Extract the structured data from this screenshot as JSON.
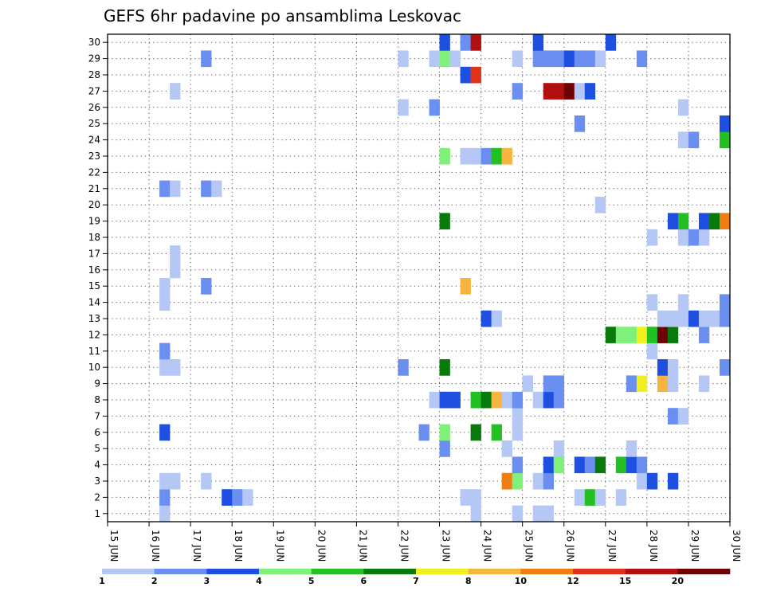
{
  "chart_data": {
    "type": "heatmap",
    "title": "GEFS 6hr padavine po ansamblima Leskovac",
    "x_ticks": [
      "15 JUN",
      "16 JUN",
      "17 JUN",
      "18 JUN",
      "19 JUN",
      "20 JUN",
      "21 JUN",
      "22 JUN",
      "23 JUN",
      "24 JUN",
      "25 JUN",
      "26 JUN",
      "27 JUN",
      "28 JUN",
      "29 JUN",
      "30 JUN"
    ],
    "y_ticks": [
      "1",
      "2",
      "3",
      "4",
      "5",
      "6",
      "7",
      "8",
      "9",
      "10",
      "11",
      "12",
      "13",
      "14",
      "15",
      "16",
      "17",
      "18",
      "19",
      "20",
      "21",
      "22",
      "23",
      "24",
      "25",
      "26",
      "27",
      "28",
      "29",
      "30"
    ],
    "xlim": [
      0,
      60
    ],
    "ylim": [
      0.5,
      30.5
    ],
    "grid": true,
    "colorbar": {
      "levels": [
        "1",
        "2",
        "3",
        "4",
        "5",
        "6",
        "7",
        "8",
        "10",
        "12",
        "15",
        "20"
      ],
      "colors": [
        "#b4c7f5",
        "#6a8ff0",
        "#1f4fe0",
        "#7ff07a",
        "#22c020",
        "#087a0c",
        "#f0f020",
        "#f8b440",
        "#f07c14",
        "#e03218",
        "#b01010",
        "#6e0202"
      ]
    },
    "cells": [
      [
        5.5,
        1,
        0
      ],
      [
        35.5,
        1,
        0
      ],
      [
        39.5,
        1,
        0
      ],
      [
        41.5,
        1,
        0
      ],
      [
        42.5,
        1,
        0
      ],
      [
        5.5,
        2,
        1
      ],
      [
        11.5,
        2,
        2
      ],
      [
        12.5,
        2,
        1
      ],
      [
        13.5,
        2,
        0
      ],
      [
        34.5,
        2,
        0
      ],
      [
        35.5,
        2,
        0
      ],
      [
        45.5,
        2,
        0
      ],
      [
        46.5,
        2,
        4
      ],
      [
        47.5,
        2,
        0
      ],
      [
        49.5,
        2,
        0
      ],
      [
        5.5,
        3,
        0
      ],
      [
        6.5,
        3,
        0
      ],
      [
        9.5,
        3,
        0
      ],
      [
        38.5,
        3,
        8
      ],
      [
        39.5,
        3,
        3
      ],
      [
        41.5,
        3,
        0
      ],
      [
        42.5,
        3,
        1
      ],
      [
        51.5,
        3,
        0
      ],
      [
        52.5,
        3,
        2
      ],
      [
        54.5,
        3,
        2
      ],
      [
        39.5,
        4,
        1
      ],
      [
        42.5,
        4,
        2
      ],
      [
        43.5,
        4,
        3
      ],
      [
        45.5,
        4,
        2
      ],
      [
        46.5,
        4,
        1
      ],
      [
        47.5,
        4,
        5
      ],
      [
        49.5,
        4,
        4
      ],
      [
        50.5,
        4,
        2
      ],
      [
        51.5,
        4,
        1
      ],
      [
        32.5,
        5,
        1
      ],
      [
        38.5,
        5,
        0
      ],
      [
        43.5,
        5,
        0
      ],
      [
        50.5,
        5,
        0
      ],
      [
        5.5,
        6,
        2
      ],
      [
        30.5,
        6,
        1
      ],
      [
        32.5,
        6,
        3
      ],
      [
        35.5,
        6,
        5
      ],
      [
        37.5,
        6,
        4
      ],
      [
        39.5,
        6,
        0
      ],
      [
        39.5,
        7,
        0
      ],
      [
        54.5,
        7,
        1
      ],
      [
        55.5,
        7,
        0
      ],
      [
        31.5,
        8,
        0
      ],
      [
        32.5,
        8,
        2
      ],
      [
        33.5,
        8,
        2
      ],
      [
        35.5,
        8,
        4
      ],
      [
        36.5,
        8,
        5
      ],
      [
        37.5,
        8,
        7
      ],
      [
        38.5,
        8,
        0
      ],
      [
        39.5,
        8,
        1
      ],
      [
        41.5,
        8,
        0
      ],
      [
        42.5,
        8,
        2
      ],
      [
        43.5,
        8,
        1
      ],
      [
        40.5,
        9,
        0
      ],
      [
        42.5,
        9,
        1
      ],
      [
        43.5,
        9,
        1
      ],
      [
        50.5,
        9,
        1
      ],
      [
        51.5,
        9,
        6
      ],
      [
        53.5,
        9,
        7
      ],
      [
        54.5,
        9,
        0
      ],
      [
        57.5,
        9,
        0
      ],
      [
        5.5,
        10,
        0
      ],
      [
        6.5,
        10,
        0
      ],
      [
        28.5,
        10,
        1
      ],
      [
        32.5,
        10,
        5
      ],
      [
        53.5,
        10,
        2
      ],
      [
        54.5,
        10,
        0
      ],
      [
        59.5,
        10,
        1
      ],
      [
        5.5,
        11,
        1
      ],
      [
        52.5,
        11,
        0
      ],
      [
        48.5,
        12,
        5
      ],
      [
        49.5,
        12,
        3
      ],
      [
        50.5,
        12,
        3
      ],
      [
        51.5,
        12,
        6
      ],
      [
        52.5,
        12,
        4
      ],
      [
        53.5,
        12,
        11
      ],
      [
        54.5,
        12,
        5
      ],
      [
        57.5,
        12,
        1
      ],
      [
        36.5,
        13,
        2
      ],
      [
        37.5,
        13,
        0
      ],
      [
        53.5,
        13,
        0
      ],
      [
        54.5,
        13,
        0
      ],
      [
        55.5,
        13,
        0
      ],
      [
        56.5,
        13,
        2
      ],
      [
        57.5,
        13,
        0
      ],
      [
        58.5,
        13,
        0
      ],
      [
        59.5,
        13,
        1
      ],
      [
        5.5,
        14,
        0
      ],
      [
        52.5,
        14,
        0
      ],
      [
        55.5,
        14,
        0
      ],
      [
        59.5,
        14,
        1
      ],
      [
        5.5,
        15,
        0
      ],
      [
        9.5,
        15,
        1
      ],
      [
        34.5,
        15,
        7
      ],
      [
        6.5,
        16,
        0
      ],
      [
        6.5,
        17,
        0
      ],
      [
        52.5,
        18,
        0
      ],
      [
        55.5,
        18,
        0
      ],
      [
        56.5,
        18,
        1
      ],
      [
        57.5,
        18,
        0
      ],
      [
        32.5,
        19,
        5
      ],
      [
        54.5,
        19,
        2
      ],
      [
        55.5,
        19,
        4
      ],
      [
        57.5,
        19,
        2
      ],
      [
        58.5,
        19,
        5
      ],
      [
        59.5,
        19,
        8
      ],
      [
        47.5,
        20,
        0
      ],
      [
        5.5,
        21,
        1
      ],
      [
        6.5,
        21,
        0
      ],
      [
        9.5,
        21,
        1
      ],
      [
        10.5,
        21,
        0
      ],
      [
        32.5,
        23,
        3
      ],
      [
        34.5,
        23,
        0
      ],
      [
        35.5,
        23,
        0
      ],
      [
        36.5,
        23,
        1
      ],
      [
        37.5,
        23,
        4
      ],
      [
        38.5,
        23,
        7
      ],
      [
        55.5,
        24,
        0
      ],
      [
        56.5,
        24,
        1
      ],
      [
        59.5,
        24,
        4
      ],
      [
        45.5,
        25,
        1
      ],
      [
        59.5,
        25,
        2
      ],
      [
        28.5,
        26,
        0
      ],
      [
        31.5,
        26,
        1
      ],
      [
        55.5,
        26,
        0
      ],
      [
        6.5,
        27,
        0
      ],
      [
        39.5,
        27,
        1
      ],
      [
        42.5,
        27,
        10
      ],
      [
        43.5,
        27,
        10
      ],
      [
        44.5,
        27,
        11
      ],
      [
        45.5,
        27,
        0
      ],
      [
        46.5,
        27,
        2
      ],
      [
        34.5,
        28,
        2
      ],
      [
        35.5,
        28,
        9
      ],
      [
        9.5,
        29,
        1
      ],
      [
        28.5,
        29,
        0
      ],
      [
        31.5,
        29,
        0
      ],
      [
        32.5,
        29,
        3
      ],
      [
        33.5,
        29,
        0
      ],
      [
        39.5,
        29,
        0
      ],
      [
        41.5,
        29,
        1
      ],
      [
        42.5,
        29,
        1
      ],
      [
        43.5,
        29,
        1
      ],
      [
        44.5,
        29,
        2
      ],
      [
        45.5,
        29,
        1
      ],
      [
        46.5,
        29,
        1
      ],
      [
        47.5,
        29,
        0
      ],
      [
        51.5,
        29,
        1
      ],
      [
        32.5,
        30,
        2
      ],
      [
        34.5,
        30,
        1
      ],
      [
        35.5,
        30,
        10
      ],
      [
        41.5,
        30,
        2
      ],
      [
        48.5,
        30,
        2
      ]
    ]
  }
}
